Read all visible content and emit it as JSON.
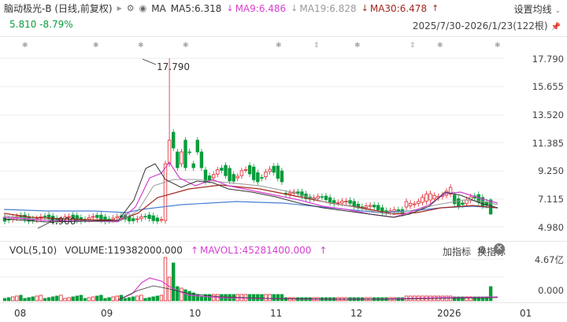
{
  "header": {
    "title": "脑动极光-B (日线,前复权)",
    "ma_label": "MA",
    "ma5": "MA5:6.318",
    "ma9": "MA9:6.486",
    "ma19": "MA19:6.828",
    "ma30": "MA30:6.478",
    "settings_label": "设置均线"
  },
  "quote": {
    "price_change": "5.810  -8.79%",
    "date_range": "2025/7/30-2026/1/23(122根)"
  },
  "price_axis": [
    "17.790",
    "15.655",
    "13.520",
    "11.385",
    "9.250",
    "7.115",
    "4.980"
  ],
  "annotations": {
    "high": "17.790",
    "low": "4.900"
  },
  "volume": {
    "indicator": "VOL(5,10)",
    "volume": "VOLUME:119382000.000",
    "mavol": "MAVOL1:45281400.000",
    "add_indicator": "加指标",
    "switch_indicator": "换指标",
    "axis_top": "4.67亿",
    "axis_zero": "0.000"
  },
  "x_axis": [
    "08",
    "09",
    "10",
    "11",
    "12",
    "2026",
    "01"
  ],
  "colors": {
    "up": "#e0242c",
    "down": "#0a9c3c",
    "ma9": "#d63fd0",
    "ma30": "#a4281e",
    "ma19": "#9a9a9a",
    "ma60": "#4a7fd4"
  },
  "icons": [
    "gear-icon",
    "eye-icon",
    "pin-icon",
    "chevron-down-icon",
    "close-icon",
    "triangle-icon"
  ]
}
